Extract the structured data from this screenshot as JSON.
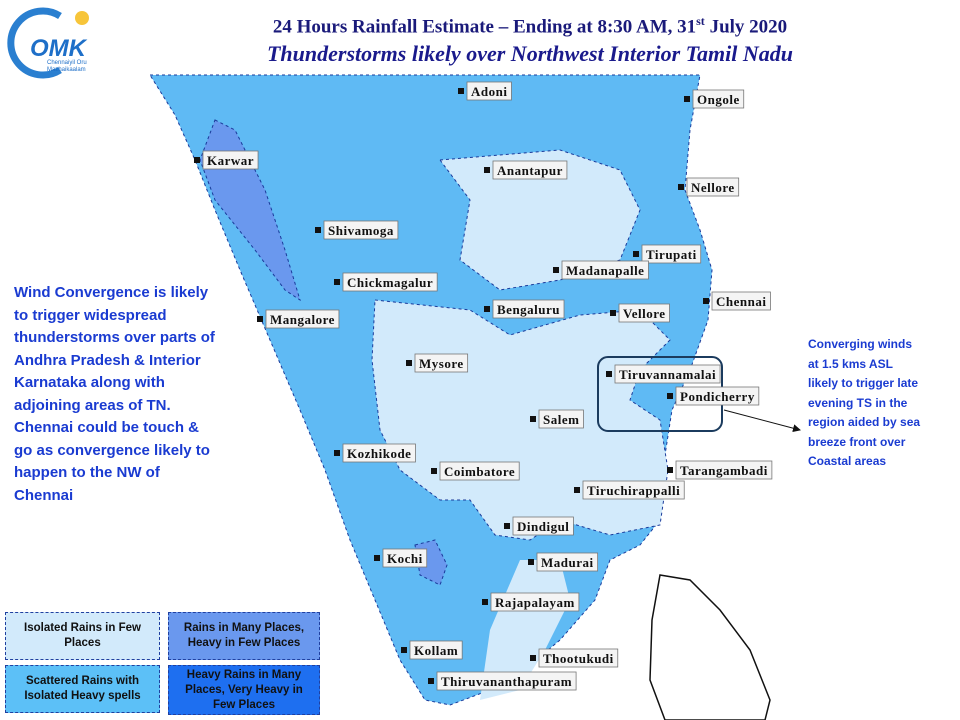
{
  "header": {
    "title_main": "24 Hours Rainfall Estimate – Ending at 8:30 AM, 31",
    "title_sup": "st",
    "title_end": "July 2020",
    "subtitle": "Thunderstorms likely over Northwest Interior Tamil Nadu"
  },
  "logo": {
    "name": "OMK",
    "tagline_1": "Chennaiyil Oru",
    "tagline_2": "Mazhaikaalam"
  },
  "left_note": [
    "Wind Convergence is likely",
    "to trigger widespread",
    "thunderstorms over parts of",
    "Andhra Pradesh & Interior",
    "Karnataka along with",
    "adjoining areas of TN.",
    "Chennai could be touch &",
    "go as convergence likely to",
    "happen to the NW of",
    "Chennai"
  ],
  "right_note": [
    "Converging winds",
    "at 1.5 kms ASL",
    "likely to trigger late",
    "evening TS in the",
    "region aided by sea",
    "breeze front over",
    "Coastal areas"
  ],
  "legend": [
    {
      "label": "Isolated Rains in Few Places",
      "color": "#d2eafb"
    },
    {
      "label": "Rains in Many Places, Heavy in Few Places",
      "color": "#6a98ee"
    },
    {
      "label": "Scattered Rains with Isolated Heavy spells",
      "color": "#5cc0f7"
    },
    {
      "label": "Heavy Rains in Many Places, Very Heavy in Few Places",
      "color": "#1e6ff0"
    }
  ],
  "cities": [
    "Adoni",
    "Ongole",
    "Karwar",
    "Anantapur",
    "Nellore",
    "Shivamoga",
    "Tirupati",
    "Madanapalle",
    "Chickmagalur",
    "Chennai",
    "Bengaluru",
    "Vellore",
    "Mangalore",
    "Mysore",
    "Tiruvannamalai",
    "Pondicherry",
    "Salem",
    "Kozhikode",
    "Tarangambadi",
    "Coimbatore",
    "Tiruchirappalli",
    "Dindigul",
    "Kochi",
    "Madurai",
    "Rajapalayam",
    "Kollam",
    "Thootukudi",
    "Thiruvananthapuram"
  ]
}
